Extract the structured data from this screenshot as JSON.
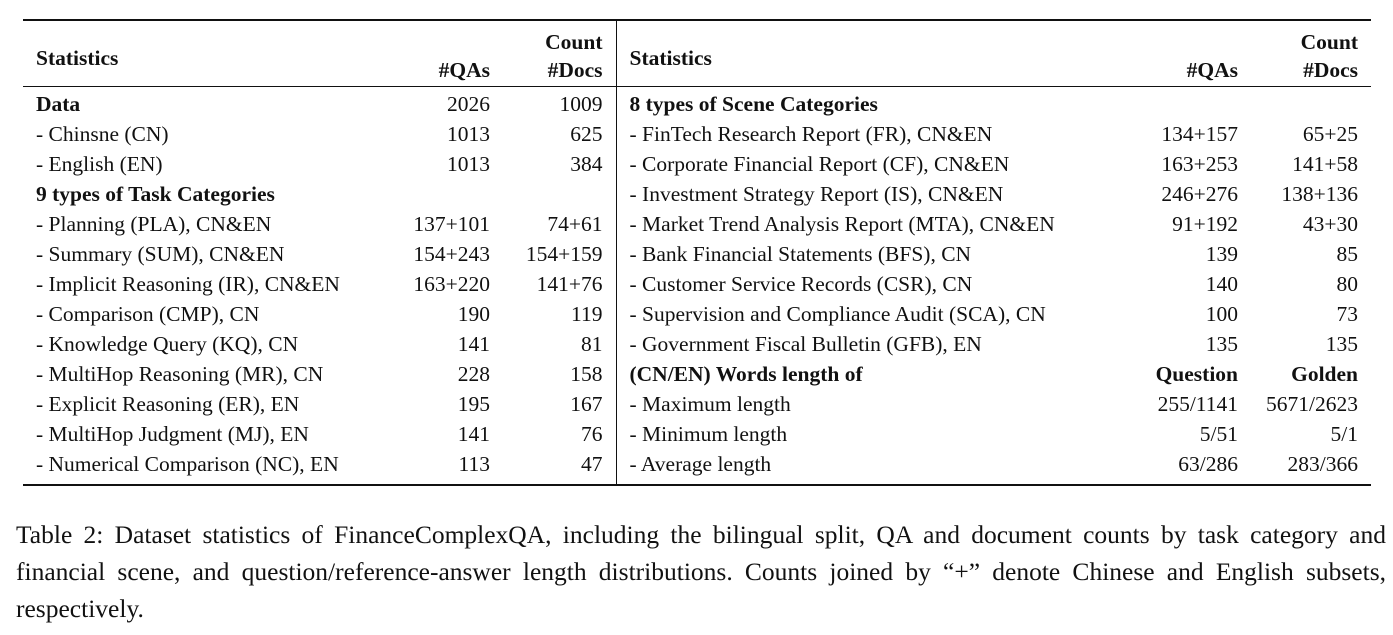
{
  "table": {
    "header": {
      "stats_left": "Statistics",
      "count_left": "Count",
      "qas_left": "#QAs",
      "docs_left": "#Docs",
      "stats_right": "Statistics",
      "count_right": "Count",
      "qas_right": "#QAs",
      "docs_right": "#Docs"
    },
    "rows": [
      {
        "left_label": "Data",
        "left_qas": "2026",
        "left_docs": "1009",
        "right_label": "8 types of Scene Categories",
        "right_qas": "",
        "right_docs": ""
      },
      {
        "left_label": "- Chinsne (CN)",
        "left_qas": "1013",
        "left_docs": "625",
        "right_label": "- FinTech Research Report (FR), CN&EN",
        "right_qas": "134+157",
        "right_docs": "65+25"
      },
      {
        "left_label": "- English (EN)",
        "left_qas": "1013",
        "left_docs": "384",
        "right_label": "- Corporate Financial Report (CF), CN&EN",
        "right_qas": "163+253",
        "right_docs": "141+58"
      },
      {
        "left_label": "9 types of Task Categories",
        "left_qas": "",
        "left_docs": "",
        "right_label": "- Investment Strategy Report (IS), CN&EN",
        "right_qas": "246+276",
        "right_docs": "138+136"
      },
      {
        "left_label": "- Planning (PLA), CN&EN",
        "left_qas": "137+101",
        "left_docs": "74+61",
        "right_label": "- Market Trend Analysis Report (MTA), CN&EN",
        "right_qas": "91+192",
        "right_docs": "43+30"
      },
      {
        "left_label": "- Summary (SUM), CN&EN",
        "left_qas": "154+243",
        "left_docs": "154+159",
        "right_label": "- Bank Financial Statements (BFS), CN",
        "right_qas": "139",
        "right_docs": "85"
      },
      {
        "left_label": "- Implicit Reasoning (IR), CN&EN",
        "left_qas": "163+220",
        "left_docs": "141+76",
        "right_label": "- Customer Service Records (CSR), CN",
        "right_qas": "140",
        "right_docs": "80"
      },
      {
        "left_label": "- Comparison (CMP), CN",
        "left_qas": "190",
        "left_docs": "119",
        "right_label": "- Supervision and Compliance Audit (SCA), CN",
        "right_qas": "100",
        "right_docs": "73"
      },
      {
        "left_label": "- Knowledge Query (KQ), CN",
        "left_qas": "141",
        "left_docs": "81",
        "right_label": "- Government Fiscal Bulletin (GFB), EN",
        "right_qas": "135",
        "right_docs": "135"
      },
      {
        "left_label": "- MultiHop Reasoning (MR), CN",
        "left_qas": "228",
        "left_docs": "158",
        "right_label": "(CN/EN) Words length of",
        "right_qas": "Question",
        "right_docs": "Golden"
      },
      {
        "left_label": "- Explicit Reasoning (ER), EN",
        "left_qas": "195",
        "left_docs": "167",
        "right_label": "- Maximum length",
        "right_qas": "255/1141",
        "right_docs": "5671/2623"
      },
      {
        "left_label": "- MultiHop Judgment (MJ), EN",
        "left_qas": "141",
        "left_docs": "76",
        "right_label": "- Minimum length",
        "right_qas": "5/51",
        "right_docs": "5/1"
      },
      {
        "left_label": "- Numerical Comparison (NC), EN",
        "left_qas": "113",
        "left_docs": "47",
        "right_label": "- Average length",
        "right_qas": "63/286",
        "right_docs": "283/366"
      }
    ]
  },
  "caption": "Table 2: Dataset statistics of FinanceComplexQA, including the bilingual split, QA and document counts by task category and financial scene, and question/reference-answer length distributions. Counts joined by “+” denote Chinese and English subsets, respectively."
}
